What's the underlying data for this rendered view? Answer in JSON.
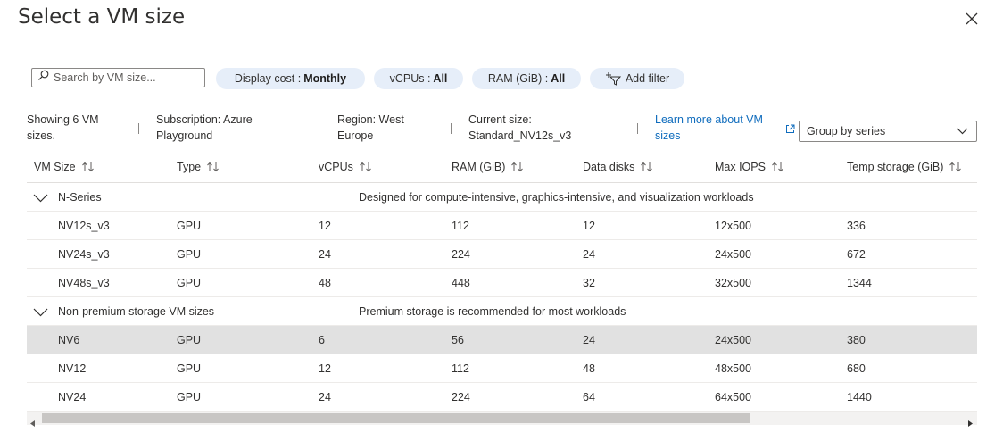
{
  "title": "Select a VM size",
  "toolbar": {
    "search_placeholder": "Search by VM size...",
    "display_cost_label": "Display cost :",
    "display_cost_value": "Monthly",
    "vcpus_label": "vCPUs :",
    "vcpus_value": "All",
    "ram_label": "RAM (GiB) :",
    "ram_value": "All",
    "add_filter_label": "Add filter"
  },
  "info": {
    "showing_line1": "Showing 6 VM",
    "showing_line2": "sizes.",
    "subscription_line1": "Subscription: Azure",
    "subscription_line2": "Playground",
    "region_line1": "Region: West",
    "region_line2": "Europe",
    "current_line1": "Current size:",
    "current_line2": "Standard_NV12s_v3",
    "learn_line1": "Learn more about VM",
    "learn_line2": "sizes"
  },
  "group_by": {
    "value": "Group by series"
  },
  "columns": [
    "VM Size",
    "Type",
    "vCPUs",
    "RAM (GiB)",
    "Data disks",
    "Max IOPS",
    "Temp storage (GiB)"
  ],
  "groups": [
    {
      "name": "N-Series",
      "description": "Designed for compute-intensive, graphics-intensive, and visualization workloads",
      "rows": [
        [
          "NV12s_v3",
          "GPU",
          "12",
          "112",
          "12",
          "12x500",
          "336"
        ],
        [
          "NV24s_v3",
          "GPU",
          "24",
          "224",
          "24",
          "24x500",
          "672"
        ],
        [
          "NV48s_v3",
          "GPU",
          "48",
          "448",
          "32",
          "32x500",
          "1344"
        ]
      ]
    },
    {
      "name": "Non-premium storage VM sizes",
      "description": "Premium storage is recommended for most workloads",
      "rows": [
        [
          "NV6",
          "GPU",
          "6",
          "56",
          "24",
          "24x500",
          "380"
        ],
        [
          "NV12",
          "GPU",
          "12",
          "112",
          "48",
          "48x500",
          "680"
        ],
        [
          "NV24",
          "GPU",
          "24",
          "224",
          "64",
          "64x500",
          "1440"
        ]
      ]
    }
  ],
  "selected_row": "NV6",
  "colors": {
    "accent": "#0f6cbd",
    "pill_bg": "#e6eef9",
    "selected_row_bg": "#e1e1e1"
  },
  "icons": [
    "close-icon",
    "search-icon",
    "add-filter-icon",
    "external-link-icon",
    "chevron-down-icon",
    "sort-icon",
    "collapse-chevron-icon"
  ]
}
